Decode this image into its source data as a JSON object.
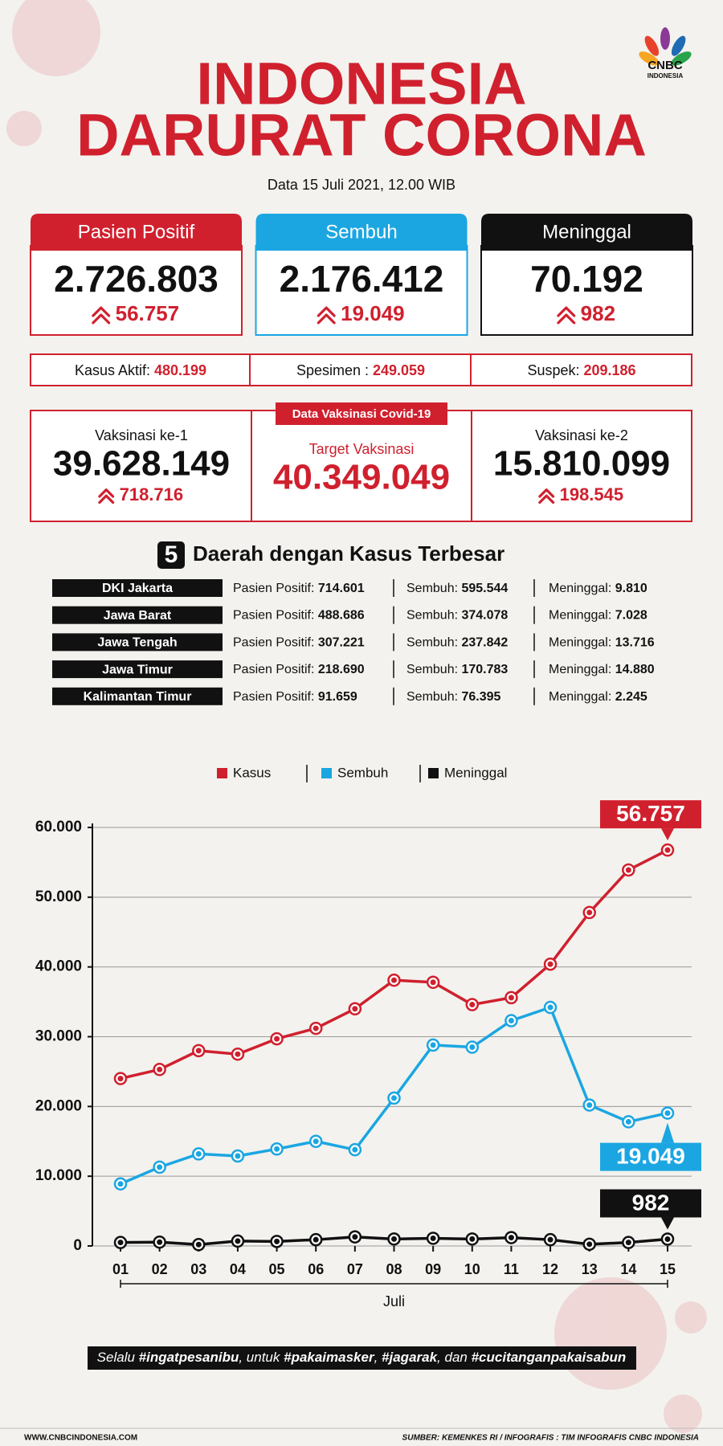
{
  "header": {
    "title_line1": "INDONESIA",
    "title_line2": "DARURAT CORONA",
    "subtitle": "Data 15 Juli 2021, 12.00 WIB",
    "logo": "CNBC",
    "logo_sub": "INDONESIA"
  },
  "cards": [
    {
      "label": "Pasien Positif",
      "total": "2.726.803",
      "increase": "56.757",
      "color": "#d0202e"
    },
    {
      "label": "Sembuh",
      "total": "2.176.412",
      "increase": "19.049",
      "color": "#1ba6e2"
    },
    {
      "label": "Meninggal",
      "total": "70.192",
      "increase": "982",
      "color": "#111111"
    }
  ],
  "stats": [
    {
      "label": "Kasus Aktif: ",
      "value": "480.199"
    },
    {
      "label": "Spesimen : ",
      "value": "249.059"
    },
    {
      "label": "Suspek: ",
      "value": "209.186"
    }
  ],
  "vaccination": {
    "title": "Data Vaksinasi Covid-19",
    "dose1": {
      "label": "Vaksinasi ke-1",
      "total": "39.628.149",
      "increase": "718.716"
    },
    "target": {
      "label": "Target Vaksinasi",
      "total": "40.349.049"
    },
    "dose2": {
      "label": "Vaksinasi ke-2",
      "total": "15.810.099",
      "increase": "198.545"
    }
  },
  "regions": {
    "number": "5",
    "title": "Daerah dengan Kasus Terbesar",
    "rows": [
      {
        "name": "DKI Jakarta",
        "positif_label": "Pasien Positif: ",
        "positif": "714.601",
        "sembuh_label": "Sembuh: ",
        "sembuh": "595.544",
        "meninggal_label": "Meninggal: ",
        "meninggal": "9.810"
      },
      {
        "name": "Jawa Barat",
        "positif_label": "Pasien Positif: ",
        "positif": "488.686",
        "sembuh_label": "Sembuh: ",
        "sembuh": "374.078",
        "meninggal_label": "Meninggal: ",
        "meninggal": "7.028"
      },
      {
        "name": "Jawa Tengah",
        "positif_label": "Pasien Positif: ",
        "positif": "307.221",
        "sembuh_label": "Sembuh: ",
        "sembuh": "237.842",
        "meninggal_label": "Meninggal: ",
        "meninggal": "13.716"
      },
      {
        "name": "Jawa Timur",
        "positif_label": "Pasien Positif: ",
        "positif": "218.690",
        "sembuh_label": "Sembuh: ",
        "sembuh": "170.783",
        "meninggal_label": "Meninggal: ",
        "meninggal": "14.880"
      },
      {
        "name": "Kalimantan Timur",
        "positif_label": "Pasien Positif: ",
        "positif": "91.659",
        "sembuh_label": "Sembuh: ",
        "sembuh": "76.395",
        "meninggal_label": "Meninggal: ",
        "meninggal": "2.245"
      }
    ]
  },
  "chart_data": {
    "type": "line",
    "x_label": "Juli",
    "categories": [
      "01",
      "02",
      "03",
      "04",
      "05",
      "06",
      "07",
      "08",
      "09",
      "10",
      "11",
      "12",
      "13",
      "14",
      "15"
    ],
    "ylim": [
      0,
      60000
    ],
    "yticks": [
      0,
      {
        "value": 10000,
        "label": "10.000"
      },
      {
        "value": 20000,
        "label": "20.000"
      },
      {
        "value": 30000,
        "label": "30.000"
      },
      {
        "value": 40000,
        "label": "40.000"
      },
      {
        "value": 50000,
        "label": "50.000"
      },
      {
        "value": 60000,
        "label": "60.000"
      }
    ],
    "grid": true,
    "series": [
      {
        "name": "Kasus",
        "color": "#d0202e",
        "values": [
          24000,
          25300,
          28000,
          27500,
          29700,
          31200,
          34000,
          38100,
          37800,
          34600,
          35600,
          40400,
          47800,
          53900,
          56757
        ],
        "value_labels": [
          null,
          null,
          null,
          null,
          null,
          null,
          null,
          null,
          null,
          null,
          null,
          null,
          null,
          null,
          "56.757"
        ]
      },
      {
        "name": "Sembuh",
        "color": "#1ba6e2",
        "values": [
          8900,
          11300,
          13200,
          12900,
          13900,
          15000,
          13800,
          21200,
          28800,
          28500,
          32300,
          34200,
          20200,
          17800,
          19049
        ],
        "value_labels": [
          null,
          null,
          null,
          null,
          null,
          null,
          null,
          null,
          null,
          null,
          null,
          null,
          null,
          null,
          "19.049"
        ]
      },
      {
        "name": "Meninggal",
        "color": "#111111",
        "values": [
          500,
          550,
          200,
          700,
          650,
          900,
          1300,
          1000,
          1100,
          1000,
          1200,
          900,
          250,
          500,
          982
        ],
        "value_labels": [
          null,
          null,
          null,
          null,
          null,
          null,
          null,
          null,
          null,
          null,
          null,
          null,
          null,
          null,
          "982"
        ]
      }
    ]
  },
  "footer": {
    "slogan": [
      {
        "text": "Selalu ",
        "bold": false
      },
      {
        "text": "#ingatpesanibu",
        "bold": true
      },
      {
        "text": ", untuk ",
        "bold": false
      },
      {
        "text": "#pakaimasker",
        "bold": true
      },
      {
        "text": ", ",
        "bold": false
      },
      {
        "text": "#jagarak",
        "bold": true
      },
      {
        "text": ", dan ",
        "bold": false
      },
      {
        "text": "#cucitanganpakaisabun",
        "bold": true
      }
    ],
    "website": "WWW.CNBCINDONESIA.COM",
    "source": "SUMBER: KEMENKES RI / INFOGRAFIS : TIM INFOGRAFIS CNBC INDONESIA"
  }
}
